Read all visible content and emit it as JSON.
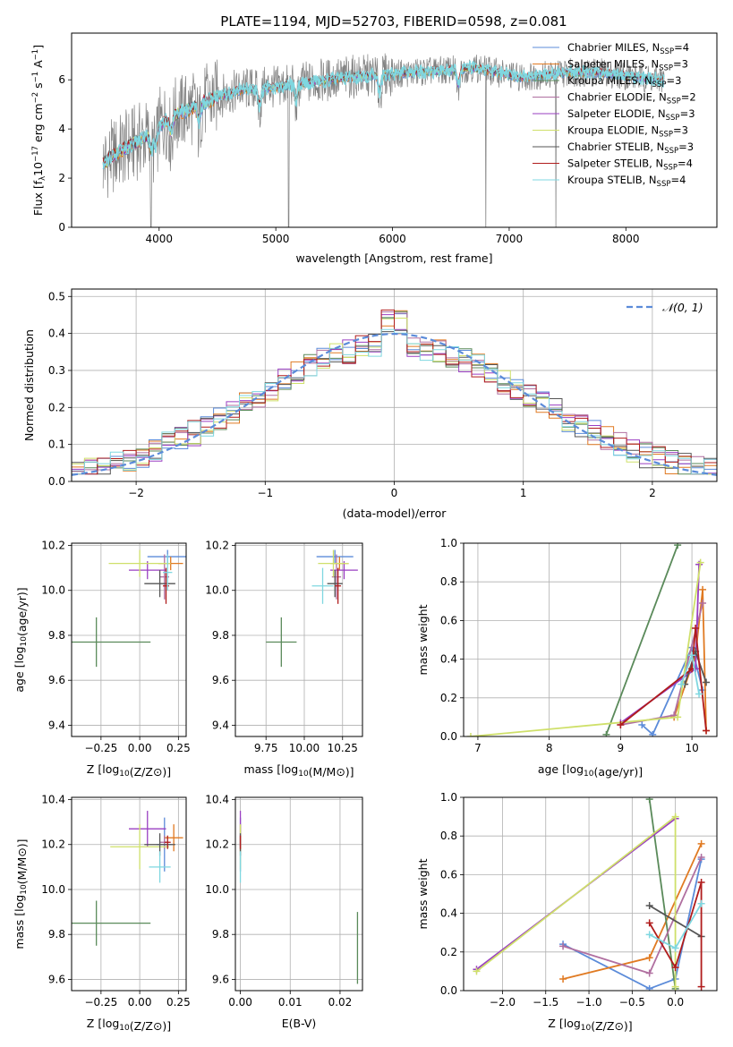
{
  "figure_title": "PLATE=1194, MJD=52703, FIBERID=0598, z=0.081",
  "colors": {
    "Chabrier MILES": "#5b8bd9",
    "Salpeter MILES": "#e07a22",
    "Kroupa MILES": "#5a8a5a",
    "Chabrier ELODIE": "#b06fa0",
    "Salpeter ELODIE": "#9a3fc2",
    "Kroupa ELODIE": "#cfe06a",
    "Chabrier STELIB": "#555555",
    "Salpeter STELIB": "#b01c1c",
    "Kroupa STELIB": "#7fd7e0",
    "data": "#808080",
    "normal": "#5b8bd9"
  },
  "chart_data": [
    {
      "id": "spectrum",
      "type": "line",
      "title": "PLATE=1194, MJD=52703, FIBERID=0598, z=0.081",
      "xlabel": "wavelength [Angstrom, rest frame]",
      "ylabel": "Flux [f_λ10^-17 erg cm^-2 s^-1 A^-1]",
      "xlim": [
        3250,
        8780
      ],
      "ylim": [
        0,
        7.9
      ],
      "xticks": [
        4000,
        5000,
        6000,
        7000,
        8000
      ],
      "yticks": [
        0,
        2,
        4,
        6
      ],
      "legend": [
        {
          "name": "Chabrier MILES",
          "sub": "SSP",
          "n": "4"
        },
        {
          "name": "Salpeter MILES",
          "sub": "SSP",
          "n": "3"
        },
        {
          "name": "Kroupa MILES",
          "sub": "SSP",
          "n": "3"
        },
        {
          "name": "Chabrier ELODIE",
          "sub": "SSP",
          "n": "2"
        },
        {
          "name": "Salpeter ELODIE",
          "sub": "SSP",
          "n": "3"
        },
        {
          "name": "Kroupa ELODIE",
          "sub": "SSP",
          "n": "3"
        },
        {
          "name": "Chabrier STELIB",
          "sub": "SSP",
          "n": "3"
        },
        {
          "name": "Salpeter STELIB",
          "sub": "SSP",
          "n": "4"
        },
        {
          "name": "Kroupa STELIB",
          "sub": "SSP",
          "n": "4"
        }
      ],
      "continuum": [
        [
          3520,
          2.6
        ],
        [
          3700,
          3.2
        ],
        [
          3900,
          3.7
        ],
        [
          4000,
          4.1
        ],
        [
          4100,
          4.5
        ],
        [
          4300,
          4.9
        ],
        [
          4500,
          5.3
        ],
        [
          4700,
          5.6
        ],
        [
          5000,
          5.7
        ],
        [
          5300,
          5.9
        ],
        [
          5600,
          6.1
        ],
        [
          5900,
          6.2
        ],
        [
          6200,
          6.3
        ],
        [
          6500,
          6.4
        ],
        [
          6700,
          6.5
        ],
        [
          6900,
          6.3
        ],
        [
          7100,
          6.1
        ],
        [
          7300,
          6.2
        ],
        [
          7500,
          6.3
        ],
        [
          7800,
          6.3
        ],
        [
          8100,
          6.1
        ],
        [
          8330,
          6.0
        ]
      ],
      "absorption_lines": [
        3934,
        3969,
        4102,
        4340,
        4861,
        5175,
        5890,
        6563
      ],
      "dropouts": [
        3930,
        5110,
        6800,
        7400
      ]
    },
    {
      "id": "residuals",
      "type": "histogram",
      "xlabel": "(data-model)/error",
      "ylabel": "Normed distribution",
      "xlim": [
        -2.5,
        2.5
      ],
      "ylim": [
        0,
        0.52
      ],
      "xticks": [
        -2,
        -1,
        0,
        1,
        2
      ],
      "xtick_labels": [
        "−2",
        "−1",
        "0",
        "1",
        "2"
      ],
      "yticks": [
        0.0,
        0.1,
        0.2,
        0.3,
        0.4,
        0.5
      ],
      "ytick_labels": [
        "0.0",
        "0.1",
        "0.2",
        "0.3",
        "0.4",
        "0.5"
      ],
      "legend": "𝒩(0, 1)",
      "bin_width": 0.1
    },
    {
      "id": "age_vs_Z",
      "type": "scatter",
      "xlabel": "Z [log10(Z/Z⊙)]",
      "ylabel": "age  [log10(age/yr)]",
      "xlim": [
        -0.44,
        0.3
      ],
      "ylim": [
        9.35,
        10.21
      ],
      "xticks": [
        -0.25,
        0.0,
        0.25
      ],
      "xtick_labels": [
        "−0.25",
        "0.00",
        "0.25"
      ],
      "yticks": [
        9.4,
        9.6,
        9.8,
        10.0,
        10.2
      ],
      "ytick_labels": [
        "9.4",
        "9.6",
        "9.8",
        "10.0",
        "10.2"
      ],
      "points": [
        {
          "series": "Chabrier MILES",
          "x": 0.18,
          "xerr": 0.13,
          "y": 10.15,
          "yerr": 0.03
        },
        {
          "series": "Salpeter MILES",
          "x": 0.2,
          "xerr": 0.08,
          "y": 10.12,
          "yerr": 0.03
        },
        {
          "series": "Kroupa MILES",
          "x": -0.28,
          "xerr": 0.35,
          "y": 9.77,
          "yerr": 0.11
        },
        {
          "series": "Chabrier ELODIE",
          "x": 0.16,
          "xerr": 0.03,
          "y": 10.06,
          "yerr": 0.1
        },
        {
          "series": "Salpeter ELODIE",
          "x": 0.05,
          "xerr": 0.12,
          "y": 10.09,
          "yerr": 0.04
        },
        {
          "series": "Kroupa ELODIE",
          "x": 0.0,
          "xerr": 0.2,
          "y": 10.12,
          "yerr": 0.06
        },
        {
          "series": "Chabrier STELIB",
          "x": 0.13,
          "xerr": 0.1,
          "y": 10.03,
          "yerr": 0.06
        },
        {
          "series": "Salpeter STELIB",
          "x": 0.17,
          "xerr": 0.02,
          "y": 10.02,
          "yerr": 0.08
        },
        {
          "series": "Kroupa STELIB",
          "x": 0.18,
          "xerr": 0.03,
          "y": 10.08,
          "yerr": 0.08
        }
      ]
    },
    {
      "id": "age_vs_mass",
      "type": "scatter",
      "xlabel": "mass [log10(M/M⊙)]",
      "ylabel": "",
      "xlim": [
        9.55,
        10.38
      ],
      "ylim": [
        9.35,
        10.21
      ],
      "xticks": [
        9.75,
        10.0,
        10.25
      ],
      "xtick_labels": [
        "9.75",
        "10.00",
        "10.25"
      ],
      "yticks": [
        9.4,
        9.6,
        9.8,
        10.0,
        10.2
      ],
      "ytick_labels": [
        "9.4",
        "9.6",
        "9.8",
        "10.0",
        "10.2"
      ],
      "points": [
        {
          "series": "Chabrier MILES",
          "x": 10.2,
          "xerr": 0.12,
          "y": 10.15,
          "yerr": 0.03
        },
        {
          "series": "Salpeter MILES",
          "x": 10.23,
          "xerr": 0.06,
          "y": 10.12,
          "yerr": 0.03
        },
        {
          "series": "Kroupa MILES",
          "x": 9.85,
          "xerr": 0.1,
          "y": 9.77,
          "yerr": 0.11
        },
        {
          "series": "Chabrier ELODIE",
          "x": 10.21,
          "xerr": 0.03,
          "y": 10.06,
          "yerr": 0.1
        },
        {
          "series": "Salpeter ELODIE",
          "x": 10.26,
          "xerr": 0.09,
          "y": 10.09,
          "yerr": 0.04
        },
        {
          "series": "Kroupa ELODIE",
          "x": 10.19,
          "xerr": 0.1,
          "y": 10.12,
          "yerr": 0.06
        },
        {
          "series": "Chabrier STELIB",
          "x": 10.2,
          "xerr": 0.05,
          "y": 10.03,
          "yerr": 0.06
        },
        {
          "series": "Salpeter STELIB",
          "x": 10.22,
          "xerr": 0.02,
          "y": 10.02,
          "yerr": 0.08
        },
        {
          "series": "Kroupa STELIB",
          "x": 10.12,
          "xerr": 0.07,
          "y": 10.02,
          "yerr": 0.08
        }
      ]
    },
    {
      "id": "massweight_vs_age",
      "type": "line",
      "xlabel": "age  [log10(age/yr)]",
      "ylabel": "mass weight",
      "xlim": [
        6.8,
        10.35
      ],
      "ylim": [
        0,
        1.0
      ],
      "xticks": [
        7,
        8,
        9,
        10
      ],
      "xtick_labels": [
        "7",
        "8",
        "9",
        "10"
      ],
      "yticks": [
        0.0,
        0.2,
        0.4,
        0.6,
        0.8,
        1.0
      ],
      "ytick_labels": [
        "0.0",
        "0.2",
        "0.4",
        "0.6",
        "0.8",
        "1.0"
      ],
      "series": [
        {
          "name": "Chabrier MILES",
          "points": [
            [
              9.3,
              0.06
            ],
            [
              9.45,
              0.01
            ],
            [
              10.0,
              0.46
            ],
            [
              10.15,
              0.24
            ]
          ]
        },
        {
          "name": "Salpeter MILES",
          "points": [
            [
              9.75,
              0.1
            ],
            [
              10.05,
              0.42
            ],
            [
              10.15,
              0.76
            ],
            [
              10.2,
              0.03
            ]
          ]
        },
        {
          "name": "Kroupa MILES",
          "points": [
            [
              8.8,
              0.01
            ],
            [
              9.8,
              0.99
            ]
          ]
        },
        {
          "name": "Chabrier ELODIE",
          "points": [
            [
              9.0,
              0.06
            ],
            [
              9.75,
              0.11
            ],
            [
              10.15,
              0.69
            ]
          ]
        },
        {
          "name": "Salpeter ELODIE",
          "points": [
            [
              9.0,
              0.07
            ],
            [
              10.05,
              0.35
            ],
            [
              10.1,
              0.89
            ]
          ]
        },
        {
          "name": "Kroupa ELODIE",
          "points": [
            [
              6.9,
              0.0
            ],
            [
              9.8,
              0.1
            ],
            [
              10.12,
              0.9
            ]
          ]
        },
        {
          "name": "Chabrier STELIB",
          "points": [
            [
              9.9,
              0.27
            ],
            [
              10.05,
              0.44
            ],
            [
              10.2,
              0.28
            ]
          ]
        },
        {
          "name": "Salpeter STELIB",
          "points": [
            [
              9.0,
              0.06
            ],
            [
              10.0,
              0.35
            ],
            [
              10.05,
              0.56
            ],
            [
              10.2,
              0.03
            ]
          ]
        },
        {
          "name": "Kroupa STELIB",
          "points": [
            [
              9.85,
              0.27
            ],
            [
              10.0,
              0.42
            ],
            [
              10.1,
              0.22
            ]
          ]
        }
      ]
    },
    {
      "id": "mass_vs_Z",
      "type": "scatter",
      "xlabel": "Z [log10(Z/Z⊙)]",
      "ylabel": "mass [log10(M/M⊙)]",
      "xlim": [
        -0.44,
        0.3
      ],
      "ylim": [
        9.55,
        10.41
      ],
      "xticks": [
        -0.25,
        0.0,
        0.25
      ],
      "xtick_labels": [
        "−0.25",
        "0.00",
        "0.25"
      ],
      "yticks": [
        9.6,
        9.8,
        10.0,
        10.2,
        10.4
      ],
      "ytick_labels": [
        "9.6",
        "9.8",
        "10.0",
        "10.2",
        "10.4"
      ],
      "points": [
        {
          "series": "Chabrier MILES",
          "x": 0.16,
          "xerr": 0.05,
          "y": 10.2,
          "yerr": 0.12
        },
        {
          "series": "Salpeter MILES",
          "x": 0.22,
          "xerr": 0.06,
          "y": 10.23,
          "yerr": 0.06
        },
        {
          "series": "Kroupa MILES",
          "x": -0.28,
          "xerr": 0.35,
          "y": 9.85,
          "yerr": 0.1
        },
        {
          "series": "Chabrier ELODIE",
          "x": 0.16,
          "xerr": 0.03,
          "y": 10.21,
          "yerr": 0.03
        },
        {
          "series": "Salpeter ELODIE",
          "x": 0.05,
          "xerr": 0.12,
          "y": 10.27,
          "yerr": 0.08
        },
        {
          "series": "Kroupa ELODIE",
          "x": 0.0,
          "xerr": 0.19,
          "y": 10.19,
          "yerr": 0.1
        },
        {
          "series": "Chabrier STELIB",
          "x": 0.13,
          "xerr": 0.1,
          "y": 10.2,
          "yerr": 0.05
        },
        {
          "series": "Salpeter STELIB",
          "x": 0.18,
          "xerr": 0.02,
          "y": 10.21,
          "yerr": 0.03
        },
        {
          "series": "Kroupa STELIB",
          "x": 0.13,
          "xerr": 0.07,
          "y": 10.1,
          "yerr": 0.07
        }
      ]
    },
    {
      "id": "mass_vs_ebv",
      "type": "scatter",
      "xlabel": "E(B-V)",
      "ylabel": "",
      "xlim": [
        -0.001,
        0.0245
      ],
      "ylim": [
        9.55,
        10.41
      ],
      "xticks": [
        0.0,
        0.01,
        0.02
      ],
      "xtick_labels": [
        "0.00",
        "0.01",
        "0.02"
      ],
      "yticks": [
        9.6,
        9.8,
        10.0,
        10.2,
        10.4
      ],
      "ytick_labels": [
        "9.6",
        "9.8",
        "10.0",
        "10.2",
        "10.4"
      ],
      "points": [
        {
          "series": "Chabrier MILES",
          "x": 0.0,
          "y": 10.2,
          "yerr": 0.12
        },
        {
          "series": "Salpeter MILES",
          "x": 0.0,
          "y": 10.23,
          "yerr": 0.06
        },
        {
          "series": "Kroupa MILES",
          "x": 0.0235,
          "y": 9.74,
          "yerr": 0.16
        },
        {
          "series": "Chabrier ELODIE",
          "x": 0.0,
          "y": 10.21,
          "yerr": 0.03
        },
        {
          "series": "Salpeter ELODIE",
          "x": 0.0,
          "y": 10.27,
          "yerr": 0.08
        },
        {
          "series": "Kroupa ELODIE",
          "x": 0.0,
          "y": 10.19,
          "yerr": 0.1
        },
        {
          "series": "Chabrier STELIB",
          "x": 0.0,
          "y": 10.2,
          "yerr": 0.05
        },
        {
          "series": "Salpeter STELIB",
          "x": 0.0,
          "y": 10.21,
          "yerr": 0.03
        },
        {
          "series": "Kroupa STELIB",
          "x": 0.0,
          "y": 10.1,
          "yerr": 0.07
        }
      ]
    },
    {
      "id": "massweight_vs_Z",
      "type": "line",
      "xlabel": "Z [log10(Z/Z⊙)]",
      "ylabel": "mass weight",
      "xlim": [
        -2.45,
        0.48
      ],
      "ylim": [
        0,
        1.0
      ],
      "xticks": [
        -2.0,
        -1.5,
        -1.0,
        -0.5,
        0.0
      ],
      "xtick_labels": [
        "−2.0",
        "−1.5",
        "−1.0",
        "−0.5",
        "0.0"
      ],
      "yticks": [
        0.0,
        0.2,
        0.4,
        0.6,
        0.8,
        1.0
      ],
      "ytick_labels": [
        "0.0",
        "0.2",
        "0.4",
        "0.6",
        "0.8",
        "1.0"
      ],
      "series": [
        {
          "name": "Chabrier MILES",
          "points": [
            [
              -1.3,
              0.24
            ],
            [
              -0.3,
              0.01
            ],
            [
              0.0,
              0.06
            ],
            [
              0.3,
              0.68
            ]
          ]
        },
        {
          "name": "Salpeter MILES",
          "points": [
            [
              -1.3,
              0.06
            ],
            [
              -0.3,
              0.17
            ],
            [
              0.3,
              0.76
            ]
          ]
        },
        {
          "name": "Kroupa MILES",
          "points": [
            [
              -0.3,
              0.99
            ],
            [
              0.0,
              0.01
            ]
          ]
        },
        {
          "name": "Chabrier ELODIE",
          "points": [
            [
              -1.3,
              0.23
            ],
            [
              -0.3,
              0.09
            ],
            [
              0.3,
              0.69
            ]
          ]
        },
        {
          "name": "Salpeter ELODIE",
          "points": [
            [
              -2.3,
              0.11
            ],
            [
              0.0,
              0.89
            ]
          ]
        },
        {
          "name": "Kroupa ELODIE",
          "points": [
            [
              -2.3,
              0.1
            ],
            [
              0.0,
              0.9
            ],
            [
              0.0,
              0.02
            ]
          ]
        },
        {
          "name": "Chabrier STELIB",
          "points": [
            [
              -0.3,
              0.44
            ],
            [
              0.3,
              0.28
            ]
          ]
        },
        {
          "name": "Salpeter STELIB",
          "points": [
            [
              -0.3,
              0.35
            ],
            [
              0.0,
              0.12
            ],
            [
              0.3,
              0.56
            ],
            [
              0.3,
              0.02
            ]
          ]
        },
        {
          "name": "Kroupa STELIB",
          "points": [
            [
              -0.3,
              0.29
            ],
            [
              0.0,
              0.22
            ],
            [
              0.3,
              0.45
            ]
          ]
        }
      ]
    }
  ]
}
